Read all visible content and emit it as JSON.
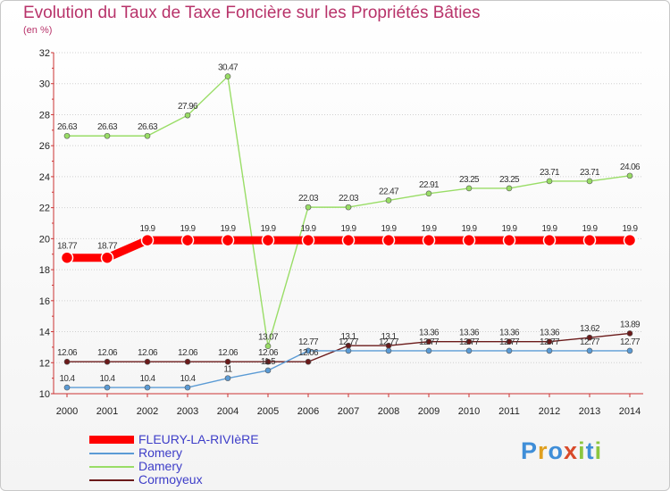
{
  "title": "Evolution du Taux de Taxe Foncière sur les Propriétés Bâties",
  "unit_label": "(en %)",
  "brand": {
    "letters": [
      "P",
      "r",
      "o",
      "x",
      "i",
      "t",
      "i"
    ],
    "colors": [
      "#3f8ed8",
      "#e0a020",
      "#3f8ed8",
      "#d84a2a",
      "#8cc63f",
      "#3f8ed8",
      "#8cc63f"
    ]
  },
  "chart_data": {
    "type": "line",
    "title": "Evolution du Taux de Taxe Foncière sur les Propriétés Bâties",
    "ylabel": "(en %)",
    "xlabel": "",
    "ylim": [
      10,
      32
    ],
    "yticks": [
      10,
      12,
      14,
      16,
      18,
      20,
      22,
      24,
      26,
      28,
      30,
      32
    ],
    "grid": "dotted-horizontal",
    "categories": [
      "2000",
      "2001",
      "2002",
      "2003",
      "2004",
      "2005",
      "2006",
      "2007",
      "2008",
      "2009",
      "2010",
      "2011",
      "2012",
      "2013",
      "2014"
    ],
    "series": [
      {
        "name": "Cormoyeux",
        "color": "#6b1a1a",
        "values": [
          12.06,
          12.06,
          12.06,
          12.06,
          12.06,
          12.06,
          12.06,
          13.1,
          13.1,
          13.36,
          13.36,
          13.36,
          13.36,
          13.62,
          13.89
        ],
        "labels": [
          "12.06",
          "12.06",
          "12.06",
          "12.06",
          "12.06",
          "12.06",
          "12.06",
          "13.1",
          "13.1",
          "13.36",
          "13.36",
          "13.36",
          "13.36",
          "13.62",
          "13.89"
        ]
      },
      {
        "name": "Romery",
        "color": "#5b9bd5",
        "values": [
          10.4,
          10.4,
          10.4,
          10.4,
          11,
          11.5,
          12.77,
          12.77,
          12.77,
          12.77,
          12.77,
          12.77,
          12.77,
          12.77,
          12.77
        ],
        "labels": [
          "10.4",
          "10.4",
          "10.4",
          "10.4",
          "11",
          "11.5",
          "12.77",
          "12.77",
          "12.77",
          "12.77",
          "12.77",
          "12.77",
          "12.77",
          "12.77",
          "12.77"
        ]
      },
      {
        "name": "Damery",
        "color": "#99dd66",
        "values": [
          26.63,
          26.63,
          26.63,
          27.96,
          30.47,
          13.07,
          22.03,
          22.03,
          22.47,
          22.91,
          23.25,
          23.25,
          23.71,
          23.71,
          24.06
        ],
        "labels": [
          "26.63",
          "26.63",
          "26.63",
          "27.96",
          "30.47",
          "13.07",
          "22.03",
          "22.03",
          "22.47",
          "22.91",
          "23.25",
          "23.25",
          "23.71",
          "23.71",
          "24.06"
        ]
      },
      {
        "name": "FLEURY-LA-RIVIèRE",
        "color": "#ff0000",
        "values": [
          18.77,
          18.77,
          19.9,
          19.9,
          19.9,
          19.9,
          19.9,
          19.9,
          19.9,
          19.9,
          19.9,
          19.9,
          19.9,
          19.9,
          19.9
        ],
        "labels": [
          "18.77",
          "18.77",
          "19.9",
          "19.9",
          "19.9",
          "19.9",
          "19.9",
          "19.9",
          "19.9",
          "19.9",
          "19.9",
          "19.9",
          "19.9",
          "19.9",
          "19.9"
        ]
      }
    ]
  },
  "legend": [
    {
      "name": "FLEURY-LA-RIVIèRE",
      "color": "#ff0000"
    },
    {
      "name": "Romery",
      "color": "#5b9bd5"
    },
    {
      "name": "Damery",
      "color": "#99dd66"
    },
    {
      "name": "Cormoyeux",
      "color": "#6b1a1a"
    }
  ]
}
